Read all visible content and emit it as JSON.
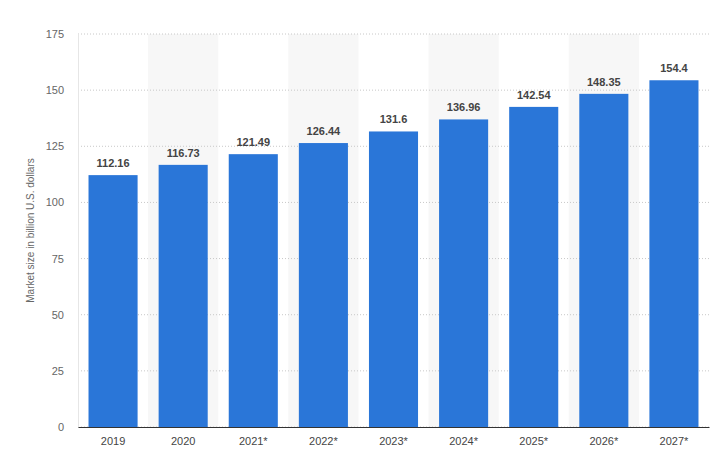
{
  "chart_data": {
    "type": "bar",
    "y_label": "Market size in billion U.S. dollars",
    "categories": [
      "2019",
      "2020",
      "2021*",
      "2022*",
      "2023*",
      "2024*",
      "2025*",
      "2026*",
      "2027*"
    ],
    "values": [
      112.16,
      116.73,
      121.49,
      126.44,
      131.6,
      136.96,
      142.54,
      148.35,
      154.4
    ],
    "color": "#2a76d8",
    "ylim": [
      0,
      175
    ],
    "yticks": [
      0,
      25,
      50,
      75,
      100,
      125,
      150,
      175
    ],
    "grid": true,
    "data_labels": true
  }
}
